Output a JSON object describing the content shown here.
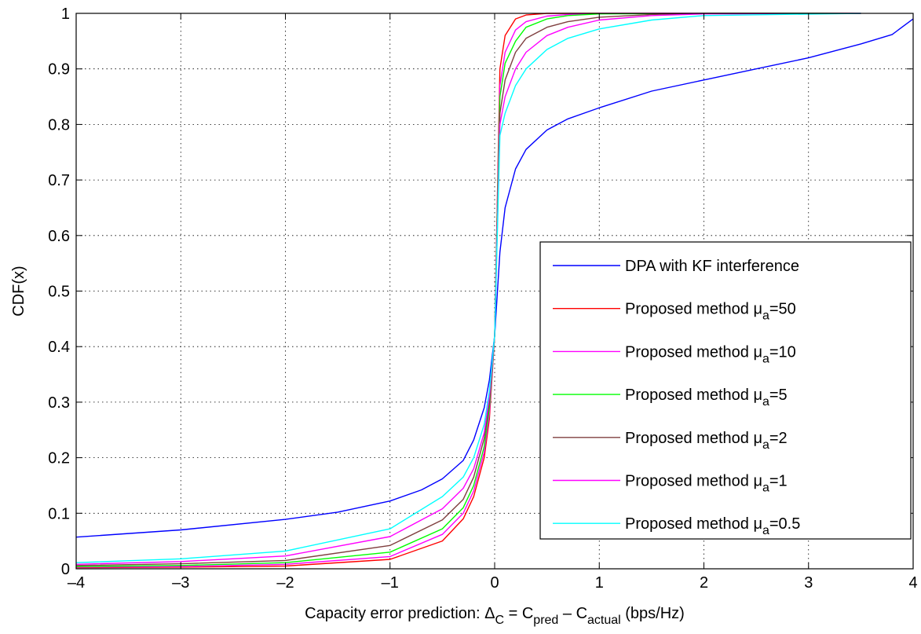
{
  "chart_data": {
    "type": "line",
    "xlabel": {
      "prefix": "Capacity error prediction: ",
      "delta": "Δ",
      "delta_sub": "C",
      "eq": " = C",
      "pred_sub": "pred",
      "minus": " – C",
      "actual_sub": "actual",
      "unit": " (bps/Hz)"
    },
    "ylabel": "CDF(x)",
    "xlim": [
      -4,
      4
    ],
    "ylim": [
      0,
      1
    ],
    "xticks": [
      -4,
      -3,
      -2,
      -1,
      0,
      1,
      2,
      3,
      4
    ],
    "xtick_labels": [
      "–4",
      "–3",
      "–2",
      "–1",
      "0",
      "1",
      "2",
      "3",
      "4"
    ],
    "yticks": [
      0,
      0.1,
      0.2,
      0.3,
      0.4,
      0.5,
      0.6,
      0.7,
      0.8,
      0.9,
      1
    ],
    "ytick_labels": [
      "0",
      "0.1",
      "0.2",
      "0.3",
      "0.4",
      "0.5",
      "0.6",
      "0.7",
      "0.8",
      "0.9",
      "1"
    ],
    "grid": true,
    "legend_position": "lower-right",
    "series": [
      {
        "name": "DPA with KF interference",
        "label_main": "DPA with KF interference",
        "label_sub": "",
        "label_tail": "",
        "color": "#0000ff",
        "x": [
          -4,
          -3,
          -2,
          -1.5,
          -1,
          -0.7,
          -0.5,
          -0.3,
          -0.2,
          -0.1,
          -0.05,
          0,
          0.05,
          0.1,
          0.2,
          0.3,
          0.5,
          0.7,
          1,
          1.5,
          2,
          2.5,
          3,
          3.5,
          3.8,
          4
        ],
        "y": [
          0.057,
          0.07,
          0.089,
          0.102,
          0.122,
          0.142,
          0.162,
          0.195,
          0.232,
          0.29,
          0.34,
          0.42,
          0.57,
          0.65,
          0.72,
          0.755,
          0.79,
          0.81,
          0.83,
          0.86,
          0.88,
          0.9,
          0.92,
          0.945,
          0.962,
          0.99
        ]
      },
      {
        "name": "Proposed method μa=50",
        "label_main": "Proposed method μ",
        "label_sub": "a",
        "label_tail": "=50",
        "color": "#ff0000",
        "x": [
          -4,
          -3,
          -2,
          -1,
          -0.5,
          -0.3,
          -0.2,
          -0.1,
          -0.05,
          0,
          0.05,
          0.1,
          0.2,
          0.3,
          0.5,
          1,
          2,
          3.5
        ],
        "y": [
          0.002,
          0.003,
          0.005,
          0.017,
          0.05,
          0.09,
          0.13,
          0.2,
          0.27,
          0.42,
          0.9,
          0.96,
          0.99,
          0.997,
          1.0,
          1.0,
          1.0,
          1.0
        ]
      },
      {
        "name": "Proposed method μa=10",
        "label_main": "Proposed method μ",
        "label_sub": "a",
        "label_tail": "=10",
        "color": "#ff00ff",
        "x": [
          -4,
          -3,
          -2,
          -1,
          -0.5,
          -0.3,
          -0.2,
          -0.1,
          -0.05,
          0,
          0.05,
          0.1,
          0.2,
          0.3,
          0.5,
          0.7,
          1,
          2,
          3.5
        ],
        "y": [
          0.003,
          0.004,
          0.008,
          0.022,
          0.062,
          0.1,
          0.14,
          0.21,
          0.28,
          0.42,
          0.87,
          0.93,
          0.97,
          0.985,
          0.995,
          0.998,
          1.0,
          1.0,
          1.0
        ]
      },
      {
        "name": "Proposed method μa=5",
        "label_main": "Proposed method μ",
        "label_sub": "a",
        "label_tail": "=5",
        "color": "#00ff00",
        "x": [
          -4,
          -3,
          -2,
          -1,
          -0.5,
          -0.3,
          -0.2,
          -0.1,
          -0.05,
          0,
          0.05,
          0.1,
          0.2,
          0.3,
          0.5,
          0.7,
          1,
          2,
          3.5
        ],
        "y": [
          0.004,
          0.006,
          0.011,
          0.03,
          0.072,
          0.11,
          0.15,
          0.22,
          0.29,
          0.42,
          0.85,
          0.91,
          0.95,
          0.975,
          0.99,
          0.996,
          0.999,
          1.0,
          1.0
        ]
      },
      {
        "name": "Proposed method μa=2",
        "label_main": "Proposed method μ",
        "label_sub": "a",
        "label_tail": "=2",
        "color": "#7f3f3f",
        "x": [
          -4,
          -3,
          -2,
          -1,
          -0.5,
          -0.3,
          -0.2,
          -0.1,
          -0.05,
          0,
          0.05,
          0.1,
          0.2,
          0.3,
          0.5,
          0.7,
          1,
          1.5,
          2,
          3.5
        ],
        "y": [
          0.006,
          0.009,
          0.015,
          0.042,
          0.088,
          0.125,
          0.165,
          0.235,
          0.3,
          0.42,
          0.82,
          0.88,
          0.93,
          0.955,
          0.975,
          0.985,
          0.993,
          0.998,
          1.0,
          1.0
        ]
      },
      {
        "name": "Proposed method μa=1",
        "label_main": "Proposed method μ",
        "label_sub": "a",
        "label_tail": "=1",
        "color": "#ff00ff",
        "x": [
          -4,
          -3,
          -2,
          -1,
          -0.5,
          -0.3,
          -0.2,
          -0.1,
          -0.05,
          0,
          0.05,
          0.1,
          0.2,
          0.3,
          0.5,
          0.7,
          1,
          1.5,
          2,
          3.5
        ],
        "y": [
          0.008,
          0.013,
          0.023,
          0.058,
          0.108,
          0.145,
          0.18,
          0.245,
          0.31,
          0.42,
          0.8,
          0.85,
          0.9,
          0.93,
          0.96,
          0.975,
          0.988,
          0.996,
          0.999,
          1.0
        ]
      },
      {
        "name": "Proposed method μa=0.5",
        "label_main": "Proposed method μ",
        "label_sub": "a",
        "label_tail": "=0.5",
        "color": "#00ffff",
        "x": [
          -4,
          -3,
          -2,
          -1,
          -0.5,
          -0.3,
          -0.2,
          -0.1,
          -0.05,
          0,
          0.05,
          0.1,
          0.2,
          0.3,
          0.5,
          0.7,
          1,
          1.5,
          2,
          3.5
        ],
        "y": [
          0.011,
          0.018,
          0.032,
          0.072,
          0.13,
          0.165,
          0.2,
          0.26,
          0.32,
          0.42,
          0.78,
          0.82,
          0.87,
          0.9,
          0.935,
          0.955,
          0.972,
          0.988,
          0.996,
          1.0
        ]
      }
    ]
  }
}
